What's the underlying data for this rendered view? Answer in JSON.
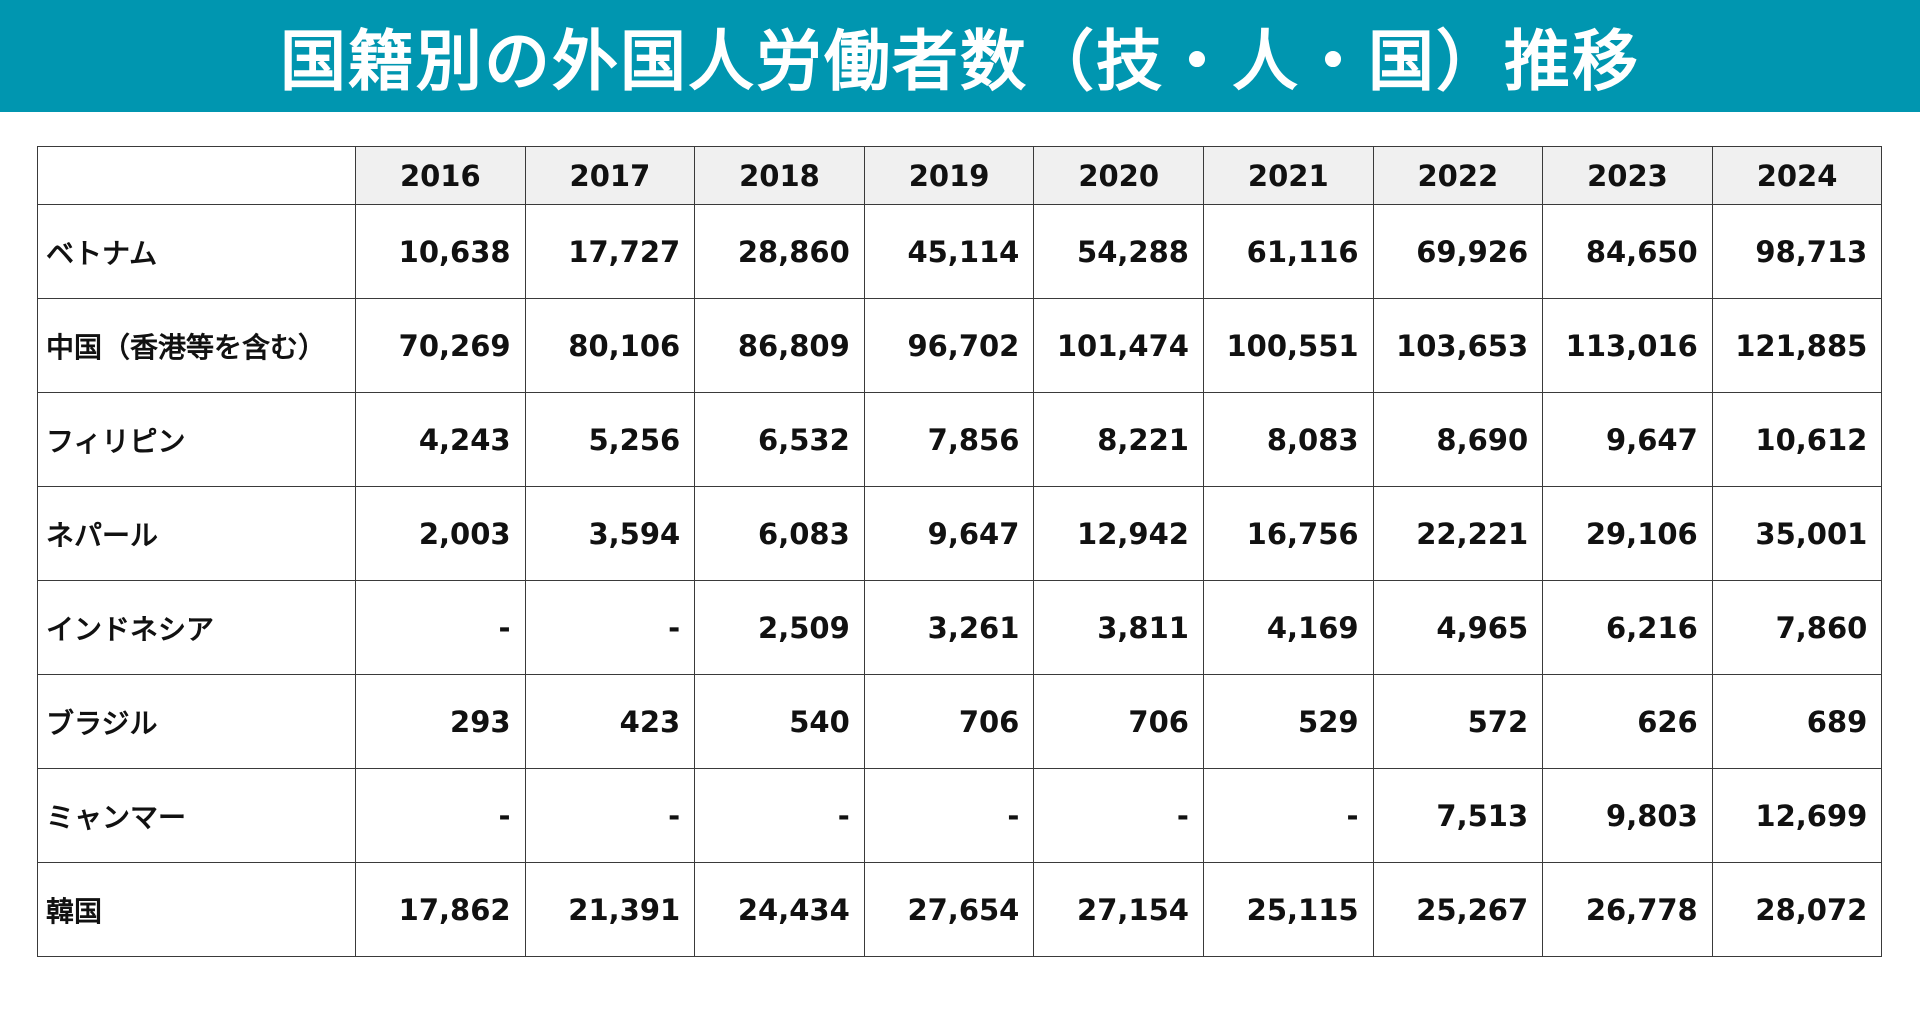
{
  "title": "国籍別の外国人労働者数（技・人・国）推移",
  "colors": {
    "header_bg": "#0096b0",
    "header_text": "#ffffff",
    "table_header_bg": "#f0f0f0",
    "border": "#3a3a3a"
  },
  "table": {
    "corner": "",
    "years": [
      "2016",
      "2017",
      "2018",
      "2019",
      "2020",
      "2021",
      "2022",
      "2023",
      "2024"
    ],
    "rows": [
      {
        "country": "ベトナム",
        "values": [
          "10,638",
          "17,727",
          "28,860",
          "45,114",
          "54,288",
          "61,116",
          "69,926",
          "84,650",
          "98,713"
        ]
      },
      {
        "country": "中国（香港等を含む）",
        "values": [
          "70,269",
          "80,106",
          "86,809",
          "96,702",
          "101,474",
          "100,551",
          "103,653",
          "113,016",
          "121,885"
        ]
      },
      {
        "country": "フィリピン",
        "values": [
          "4,243",
          "5,256",
          "6,532",
          "7,856",
          "8,221",
          "8,083",
          "8,690",
          "9,647",
          "10,612"
        ]
      },
      {
        "country": "ネパール",
        "values": [
          "2,003",
          "3,594",
          "6,083",
          "9,647",
          "12,942",
          "16,756",
          "22,221",
          "29,106",
          "35,001"
        ]
      },
      {
        "country": "インドネシア",
        "values": [
          "-",
          "-",
          "2,509",
          "3,261",
          "3,811",
          "4,169",
          "4,965",
          "6,216",
          "7,860"
        ]
      },
      {
        "country": "ブラジル",
        "values": [
          "293",
          "423",
          "540",
          "706",
          "706",
          "529",
          "572",
          "626",
          "689"
        ]
      },
      {
        "country": "ミャンマー",
        "values": [
          "-",
          "-",
          "-",
          "-",
          "-",
          "-",
          "7,513",
          "9,803",
          "12,699"
        ]
      },
      {
        "country": "韓国",
        "values": [
          "17,862",
          "21,391",
          "24,434",
          "27,654",
          "27,154",
          "25,115",
          "25,267",
          "26,778",
          "28,072"
        ]
      }
    ]
  }
}
